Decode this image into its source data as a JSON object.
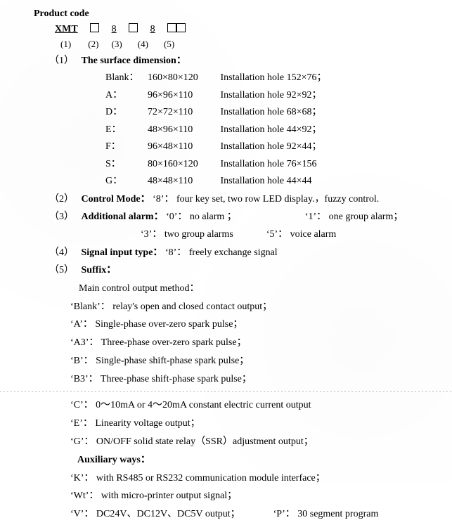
{
  "title": "Product code",
  "code": {
    "prefix": "XMT",
    "slots": [
      "(1)",
      "(2)",
      "(3)",
      "(4)",
      "(5)"
    ],
    "slot2": "8",
    "slot4": "8"
  },
  "sec1": {
    "idx": "（1）",
    "heading": "The surface dimension：",
    "rows": [
      {
        "label": "Blank：",
        "dim": "160×80×120",
        "hole": "Installation hole 152×76；"
      },
      {
        "label": "A：",
        "dim": "96×96×110",
        "hole": "Installation hole 92×92；"
      },
      {
        "label": "D：",
        "dim": "72×72×110",
        "hole": "Installation hole 68×68；"
      },
      {
        "label": "E：",
        "dim": "48×96×110",
        "hole": "Installation hole 44×92；"
      },
      {
        "label": "F：",
        "dim": "96×48×110",
        "hole": "Installation hole 92×44；"
      },
      {
        "label": "S：",
        "dim": "80×160×120",
        "hole": "Installation hole 76×156"
      },
      {
        "label": "G：",
        "dim": "48×48×110",
        "hole": "Installation hole 44×44"
      }
    ]
  },
  "sec2": {
    "idx": "（2）",
    "heading": "Control Mode：",
    "text": "‘8’： four key set, two row LED display.，fuzzy control."
  },
  "sec3": {
    "idx": "（3）",
    "heading": "Additional alarm：",
    "a": "‘0’： no alarm ；",
    "b": "‘1’： one group alarm；",
    "c": "‘3’： two group alarms",
    "d": "‘5’： voice alarm"
  },
  "sec4": {
    "idx": "（4）",
    "heading": "Signal input type：",
    "text": "‘8’： freely exchange signal"
  },
  "sec5": {
    "idx": "（5）",
    "heading": "Suffix：",
    "mainHeading": "Main control output method：",
    "main": [
      "‘Blank’： relay's open and closed contact output；",
      "‘A’： Single-phase over-zero spark pulse；",
      "‘A3’： Three-phase over-zero spark pulse；",
      "‘B’： Single-phase shift-phase spark pulse；",
      "‘B3’： Three-phase shift-phase spark pulse；"
    ],
    "main2": [
      "‘C’： 0～10mA or 4～20mA constant electric current output",
      "‘E’： Linearity voltage output；",
      "‘G’： ON/OFF solid state relay（SSR）adjustment output；"
    ],
    "auxHeading": "Auxiliary ways：",
    "aux": [
      "‘K’： with RS485 or RS232 communication module interface；",
      "‘Wt’： with micro-printer output signal；"
    ],
    "auxLastA": "‘V’： DC24V、DC12V、DC5V output；",
    "auxLastB": "‘P’： 30 segment program"
  },
  "style": {
    "fontFamily": "Times New Roman",
    "baseFontSize": 14,
    "textColor": "#000000",
    "background": "#ffffff",
    "pageWidth": 643,
    "pageHeight": 690
  }
}
